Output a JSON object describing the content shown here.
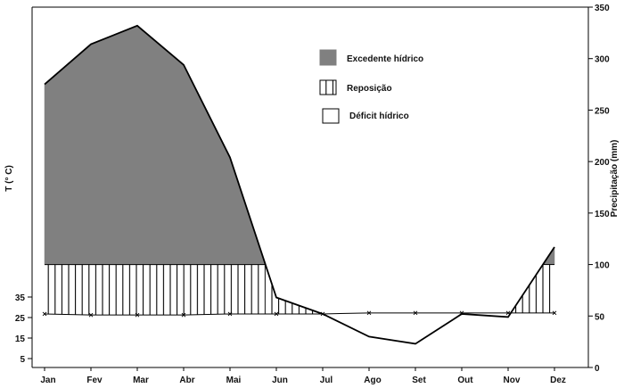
{
  "chart_data": {
    "type": "area",
    "title": "",
    "categories": [
      "Jan",
      "Fev",
      "Mar",
      "Abr",
      "Mai",
      "Jun",
      "Jul",
      "Ago",
      "Set",
      "Out",
      "Nov",
      "Dez"
    ],
    "series": [
      {
        "name": "",
        "values": [
          275,
          314,
          332,
          294,
          204,
          68,
          52,
          30,
          23,
          52,
          49,
          117
        ]
      },
      {
        "name": "",
        "values": [
          52,
          51,
          51,
          51,
          52,
          52,
          52,
          53,
          53,
          53,
          53,
          53
        ]
      }
    ],
    "storage_capacity": 100,
    "fills": {
      "excedente": "#808080",
      "reposicao": "hatch-vertical",
      "deficit": "#ffffff"
    },
    "legend": {
      "position": "top-right",
      "entries": [
        "Excedente hídrico",
        "Reposição",
        "Déficit hídrico"
      ]
    },
    "y_right": {
      "label": "Precipitação (mm)",
      "range": [
        0,
        350
      ],
      "ticks": [
        0,
        50,
        100,
        150,
        200,
        250,
        300,
        350
      ]
    },
    "y_left": {
      "label": "T (° C)",
      "ticks": [
        5,
        15,
        25,
        35
      ]
    },
    "grid": false
  }
}
